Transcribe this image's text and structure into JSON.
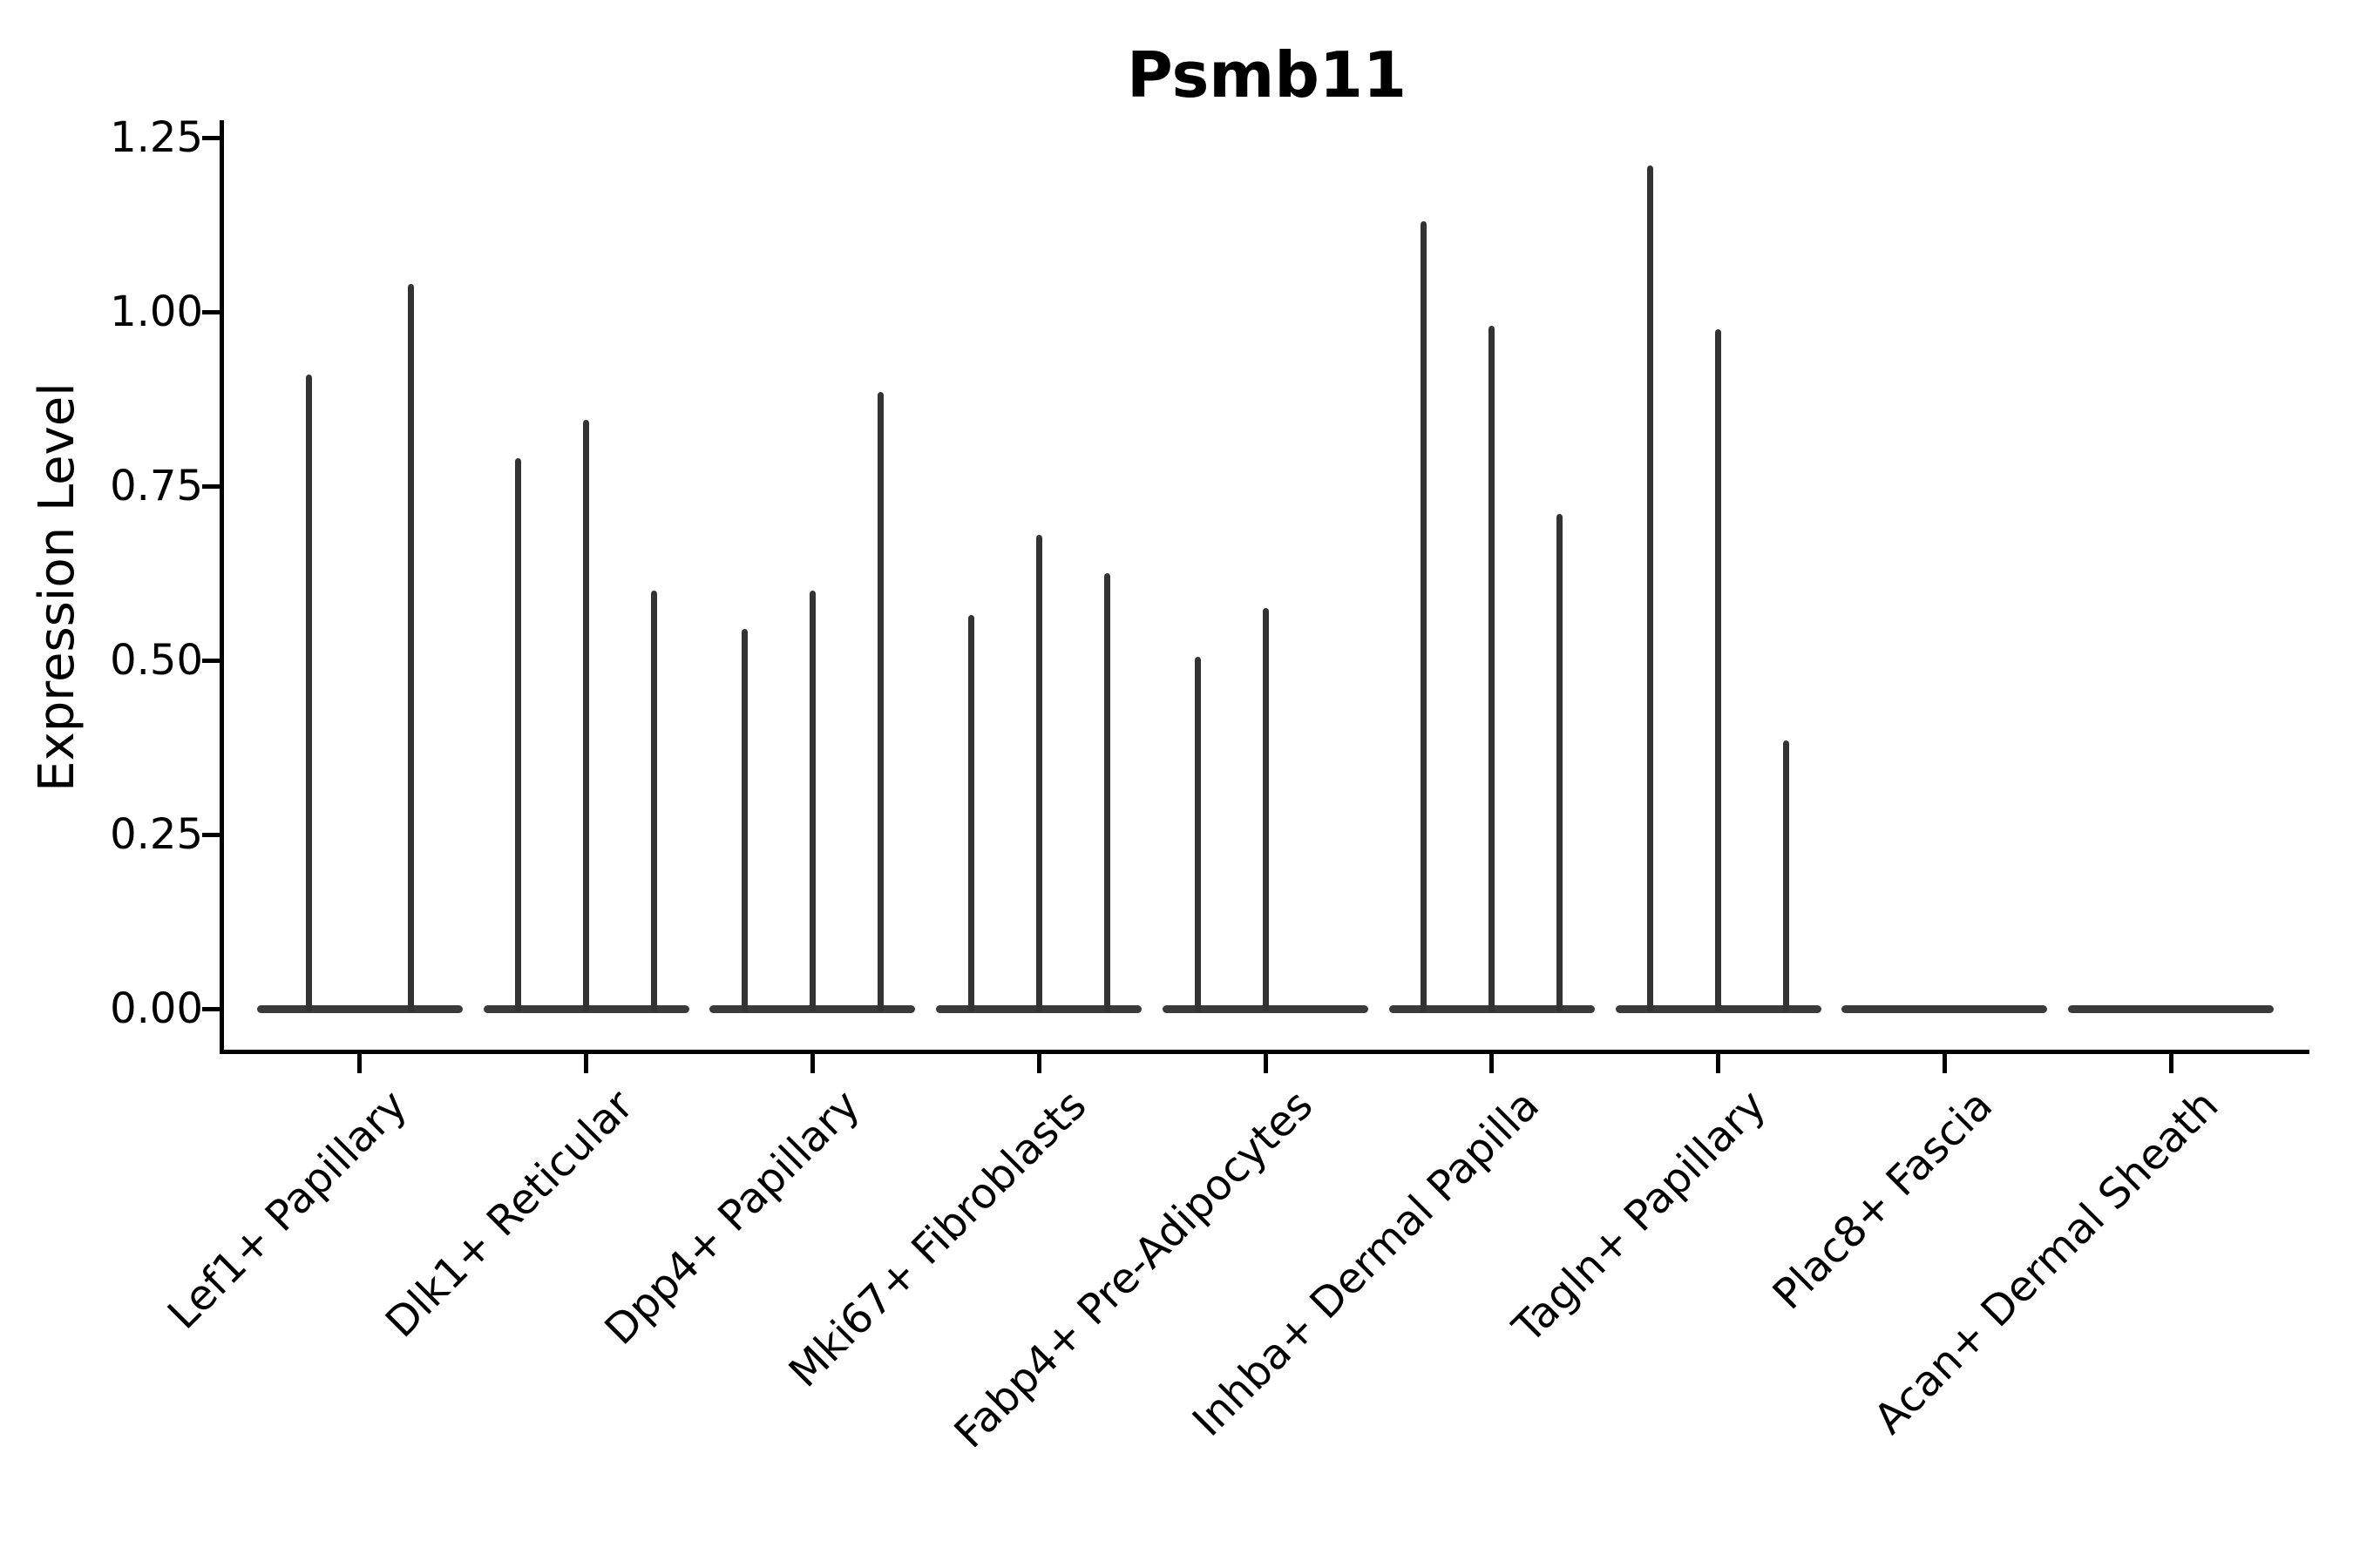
{
  "title": "Psmb11",
  "y_axis_title": "Expression Level",
  "colors": {
    "background": "#ffffff",
    "axis": "#000000",
    "text": "#000000",
    "violin_spike": "#333333",
    "violin_baseline": "#3a3a3a"
  },
  "chart_data": {
    "type": "violin",
    "title": "Psmb11",
    "xlabel": "",
    "ylabel": "Expression Level",
    "ylim": [
      -0.065,
      1.275
    ],
    "yticks": [
      0.0,
      0.25,
      0.5,
      0.75,
      1.0,
      1.25
    ],
    "ytick_labels": [
      "0.00",
      "0.25",
      "0.50",
      "0.75",
      "1.00",
      "1.25"
    ],
    "grid": false,
    "legend": "none",
    "x_label_rotation_deg": 45,
    "description": "Sparse-expression violin plot: each category shows a flat violin base at 0 with thin vertical spikes reaching the maximum expression of sub-violins; last two categories have zero expression (flat line only).",
    "categories": [
      {
        "label": "Lef1+ Papillary",
        "spikes": [
          {
            "offset_units": -0.225,
            "value": 0.91
          },
          {
            "offset_units": 0.225,
            "value": 1.04
          }
        ]
      },
      {
        "label": "Dlk1+ Reticular",
        "spikes": [
          {
            "offset_units": -0.3,
            "value": 0.79
          },
          {
            "offset_units": 0.0,
            "value": 0.845
          },
          {
            "offset_units": 0.3,
            "value": 0.6
          }
        ]
      },
      {
        "label": "Dpp4+ Papillary",
        "spikes": [
          {
            "offset_units": -0.3,
            "value": 0.545
          },
          {
            "offset_units": 0.0,
            "value": 0.6
          },
          {
            "offset_units": 0.3,
            "value": 0.885
          }
        ]
      },
      {
        "label": "Mki67+ Fibroblasts",
        "spikes": [
          {
            "offset_units": -0.3,
            "value": 0.565
          },
          {
            "offset_units": 0.0,
            "value": 0.68
          },
          {
            "offset_units": 0.3,
            "value": 0.625
          }
        ]
      },
      {
        "label": "Fabp4+ Pre-Adipocytes",
        "spikes": [
          {
            "offset_units": -0.3,
            "value": 0.505
          },
          {
            "offset_units": 0.0,
            "value": 0.575
          }
        ]
      },
      {
        "label": "Inhba+ Dermal Papilla",
        "spikes": [
          {
            "offset_units": -0.3,
            "value": 1.13
          },
          {
            "offset_units": 0.0,
            "value": 0.98
          },
          {
            "offset_units": 0.3,
            "value": 0.71
          }
        ]
      },
      {
        "label": "Tagln+ Papillary",
        "spikes": [
          {
            "offset_units": -0.3,
            "value": 1.21
          },
          {
            "offset_units": 0.0,
            "value": 0.975
          },
          {
            "offset_units": 0.3,
            "value": 0.385
          }
        ]
      },
      {
        "label": "Plac8+ Fascia",
        "spikes": []
      },
      {
        "label": "Acan+ Dermal Sheath",
        "spikes": []
      }
    ]
  }
}
